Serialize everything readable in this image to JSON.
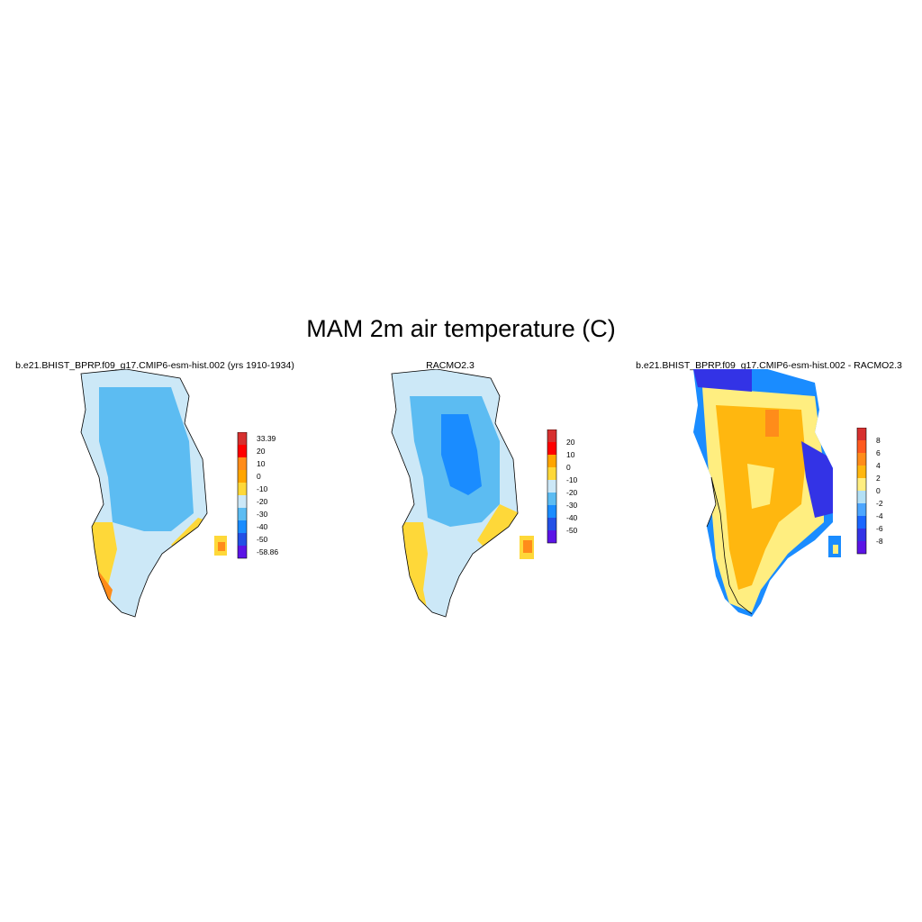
{
  "title": "MAM 2m air temperature (C)",
  "palette": {
    "land_outline": "#000000",
    "water": "#ffffff"
  },
  "panels": [
    {
      "title": "b.e21.BHIST_BPRP.f09_g17.CMIP6-esm-hist.002 (yrs 1910-1934)",
      "colorbar": {
        "labels": [
          "33.39",
          "20",
          "10",
          "0",
          "-10",
          "-20",
          "-30",
          "-40",
          "-50",
          "-58.86"
        ],
        "colors": [
          "#d7302f",
          "#ff0000",
          "#ff8c1a",
          "#ffa500",
          "#fed839",
          "#cce8f7",
          "#5cbcf2",
          "#1a8cff",
          "#2350e6",
          "#5b14e6"
        ]
      },
      "field_colors": {
        "interior": "#5cbcf2",
        "margin": "#cce8f7",
        "coast": "#fed839",
        "warm": "#ff8c1a"
      }
    },
    {
      "title": "RACMO2.3",
      "colorbar": {
        "labels": [
          "20",
          "10",
          "0",
          "-10",
          "-20",
          "-30",
          "-40",
          "-50"
        ],
        "colors": [
          "#d7302f",
          "#ff0000",
          "#ffa500",
          "#fed839",
          "#cce8f7",
          "#5cbcf2",
          "#1a8cff",
          "#2350e6",
          "#5b14e6"
        ]
      },
      "field_colors": {
        "core": "#1a8cff",
        "interior": "#5cbcf2",
        "margin": "#cce8f7",
        "coast": "#fed839",
        "warm": "#ff8c1a"
      }
    },
    {
      "title": "b.e21.BHIST_BPRP.f09_g17.CMIP6-esm-hist.002 - RACMO2.3",
      "colorbar": {
        "labels": [
          "8",
          "6",
          "4",
          "2",
          "0",
          "-2",
          "-4",
          "-6",
          "-8"
        ],
        "colors": [
          "#d7302f",
          "#ff5a1f",
          "#ff8c1a",
          "#ffb70f",
          "#ffee80",
          "#b3e0f5",
          "#4da6ff",
          "#1a66ff",
          "#3333e6",
          "#5b14e6"
        ]
      },
      "field_colors": {
        "warm": "#ffb70f",
        "mild": "#ffee80",
        "cool": "#1a8cff",
        "cold": "#3333e6",
        "hot": "#ff8c1a"
      }
    }
  ]
}
